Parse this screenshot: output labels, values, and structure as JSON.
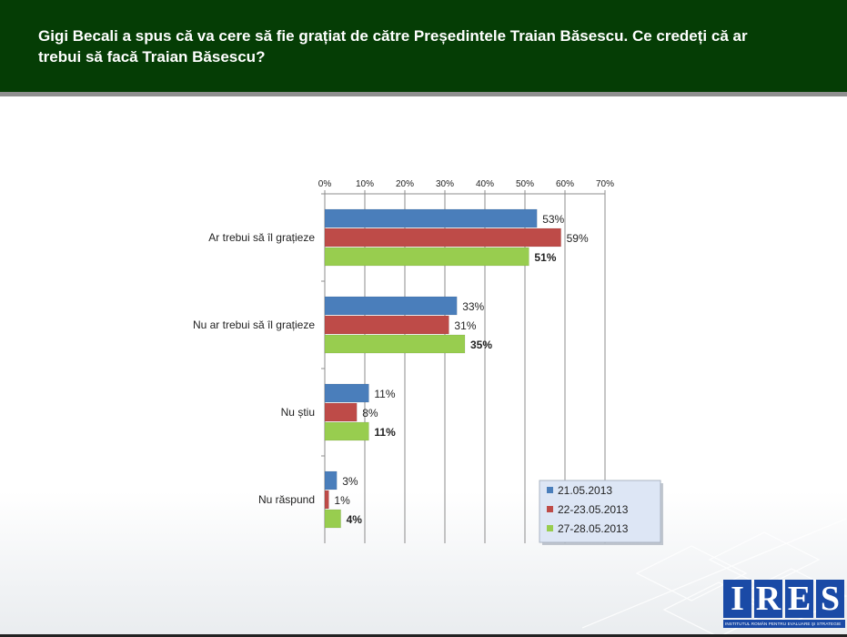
{
  "header": {
    "title": "Gigi Becali a spus că va cere să fie grațiat de către Președintele Traian Băsescu. Ce credeți că ar trebui să facă Traian Băsescu?"
  },
  "chart_data": {
    "type": "bar",
    "orientation": "horizontal",
    "categories": [
      "Ar trebui să îl grațieze",
      "Nu ar trebui să îl grațieze",
      "Nu știu",
      "Nu răspund"
    ],
    "series": [
      {
        "name": "21.05.2013",
        "values": [
          53,
          33,
          11,
          3
        ],
        "color": "#4a7ebb"
      },
      {
        "name": "22-23.05.2013",
        "values": [
          59,
          31,
          8,
          1
        ],
        "color": "#be4b48"
      },
      {
        "name": "27-28.05.2013",
        "values": [
          51,
          35,
          11,
          4
        ],
        "color": "#98cd4f"
      }
    ],
    "xlim": [
      0,
      70
    ],
    "x_ticks": [
      0,
      10,
      20,
      30,
      40,
      50,
      60,
      70
    ],
    "x_tick_suffix": "%",
    "value_suffix": "%",
    "x_axis_position": "top",
    "grid": true,
    "legend": "bottom-right",
    "bold_labels_series": "27-28.05.2013"
  },
  "logo": {
    "letters": [
      "I",
      "R",
      "E",
      "S"
    ],
    "subtitle": "INSTITUTUL ROMÂN PENTRU EVALUARE ŞI STRATEGIE"
  },
  "colors": {
    "header_bg": "#053d05",
    "header_border": "#8f8f8f",
    "logo_blue": "#1a4aa6"
  }
}
